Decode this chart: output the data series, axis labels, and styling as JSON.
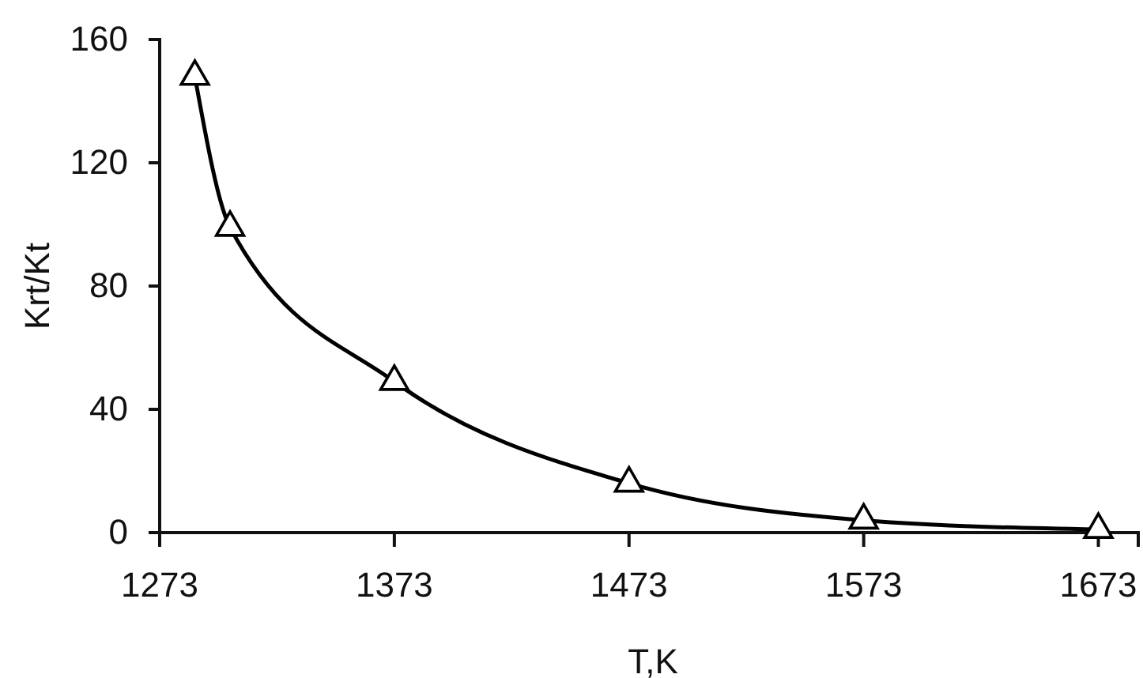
{
  "chart_data": {
    "type": "line",
    "xlabel": "T,K",
    "ylabel": "Krt/Kt",
    "x": [
      1288,
      1303,
      1373,
      1473,
      1573,
      1673
    ],
    "values": [
      148,
      99,
      49,
      16,
      4,
      1
    ],
    "color": "#000000",
    "marker": "triangle",
    "xlim": [
      1273,
      1690
    ],
    "xticks": [
      1273,
      1373,
      1473,
      1573,
      1673
    ],
    "ylim": [
      0,
      160
    ],
    "yticks": [
      0,
      40,
      80,
      120,
      160
    ]
  }
}
